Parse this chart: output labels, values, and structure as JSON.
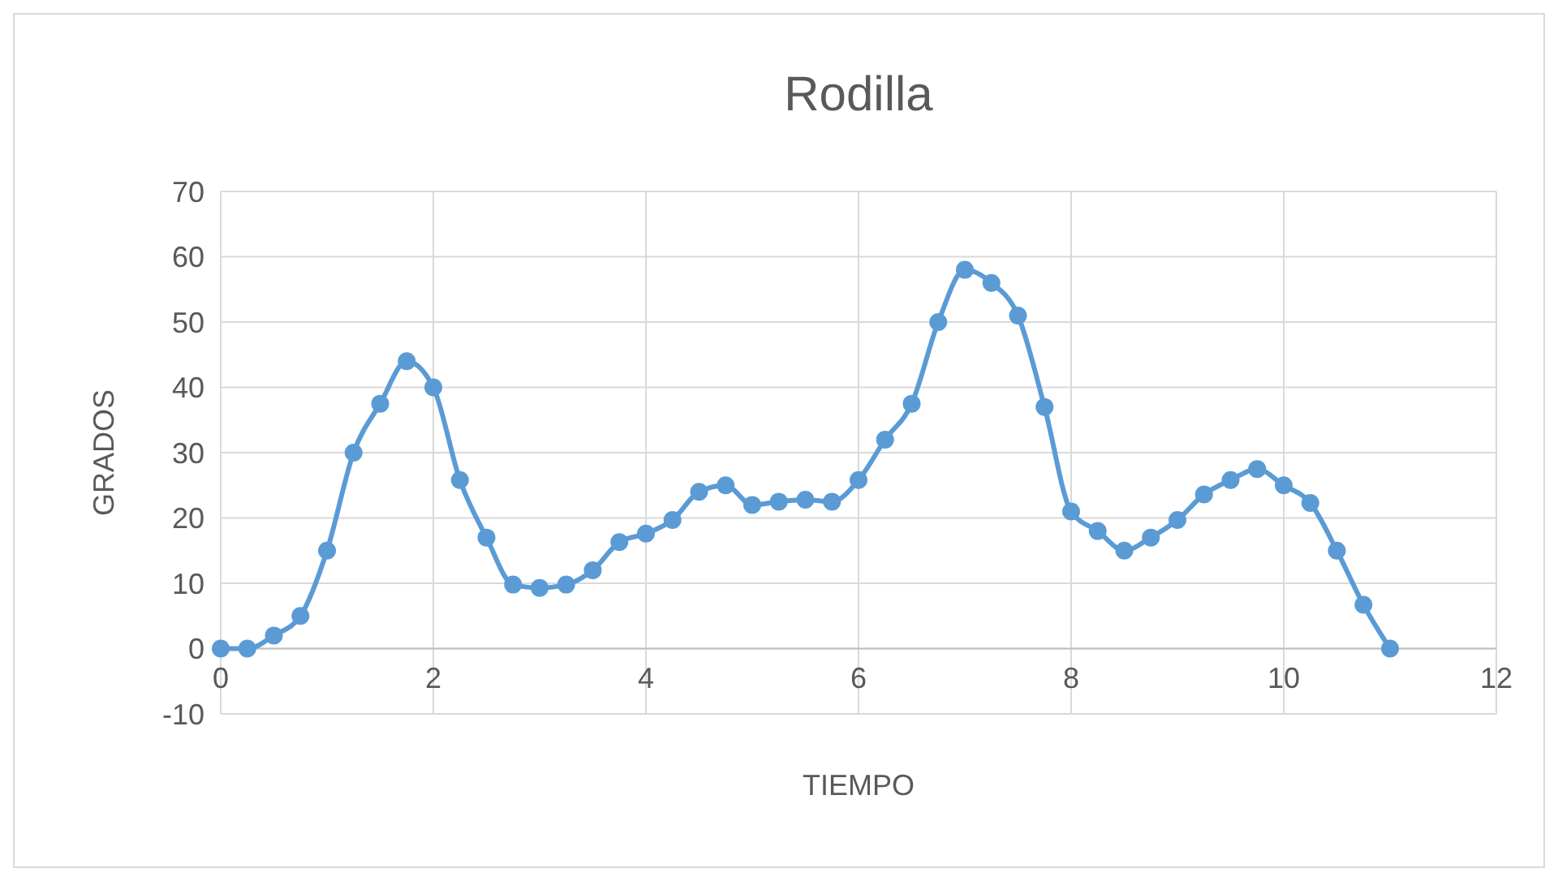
{
  "chart_data": {
    "type": "line",
    "title": "Rodilla",
    "xlabel": "TIEMPO",
    "ylabel": "GRADOS",
    "xlim": [
      0,
      12
    ],
    "xticks": [
      0,
      2,
      4,
      6,
      8,
      10,
      12
    ],
    "ylim": [
      -10,
      70
    ],
    "yticks": [
      -10,
      0,
      10,
      20,
      30,
      40,
      50,
      60,
      70
    ],
    "grid": true,
    "marker": "circle",
    "line_style": "solid",
    "series": [
      {
        "color": "#5b9bd5",
        "x": [
          0,
          0.25,
          0.5,
          0.75,
          1,
          1.25,
          1.5,
          1.75,
          2,
          2.25,
          2.5,
          2.75,
          3,
          3.25,
          3.5,
          3.75,
          4,
          4.25,
          4.5,
          4.75,
          5,
          5.25,
          5.5,
          5.75,
          6,
          6.25,
          6.5,
          6.75,
          7,
          7.25,
          7.5,
          7.75,
          8,
          8.25,
          8.5,
          8.75,
          9,
          9.25,
          9.5,
          9.75,
          10,
          10.25,
          10.5,
          10.75,
          11
        ],
        "values": [
          0,
          0,
          2,
          5,
          15,
          30,
          37.5,
          44,
          40,
          25.8,
          17,
          9.8,
          9.3,
          9.8,
          12,
          16.3,
          17.6,
          19.7,
          24,
          25,
          22,
          22.5,
          22.8,
          22.5,
          25.8,
          32,
          37.5,
          50,
          58,
          56,
          51,
          37,
          21,
          18,
          15,
          17,
          19.7,
          23.6,
          25.8,
          27.5,
          25,
          22.3,
          15,
          6.7,
          0
        ]
      }
    ]
  }
}
